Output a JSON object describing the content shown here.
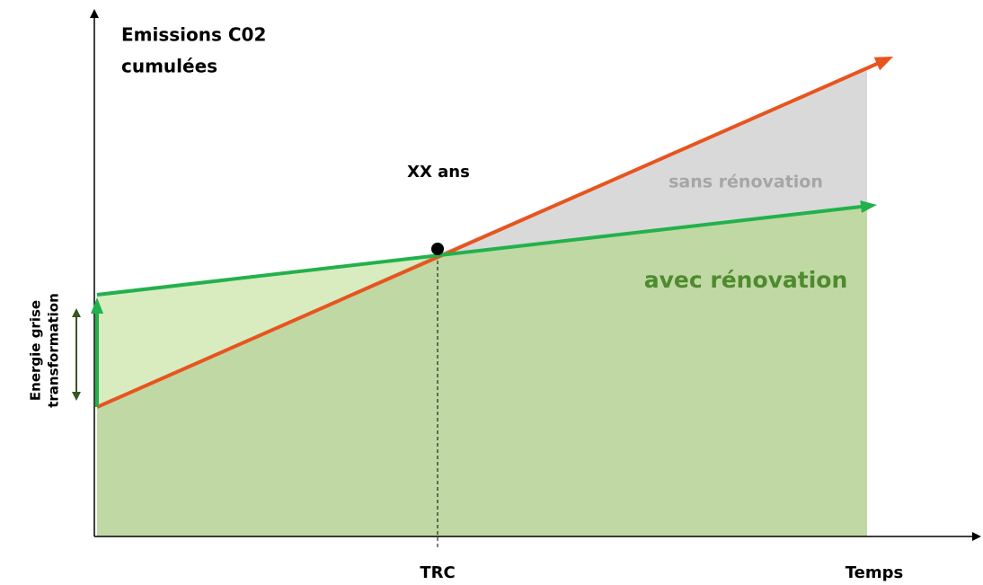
{
  "y_axis_label": [
    "Emissions C02",
    "cumulées"
  ],
  "x_axis_label": "Temps",
  "x_marker_label": "TRC",
  "point_label": "XX ans",
  "area_labels": {
    "without": "sans rénovation",
    "with": "avec rénovation"
  },
  "offset_label": [
    "Energie grise",
    "transformation"
  ]
}
